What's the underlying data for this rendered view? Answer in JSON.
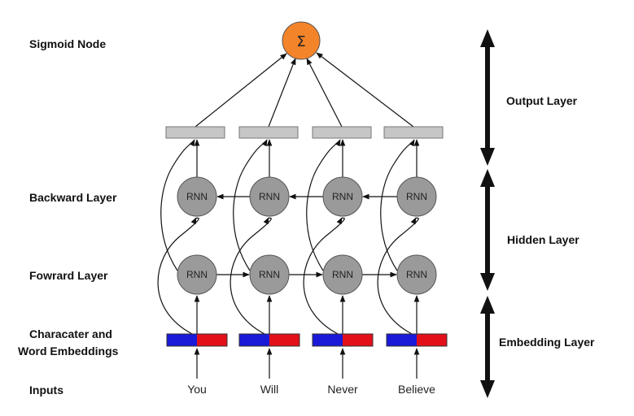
{
  "left_labels": {
    "sigmoid": "Sigmoid Node",
    "backward": "Backward Layer",
    "forward": "Fowrard Layer",
    "embed_line1": "Characater and",
    "embed_line2": "Word Embeddings",
    "inputs": "Inputs"
  },
  "right_labels": {
    "output": "Output Layer",
    "hidden": "Hidden Layer",
    "embedding": "Embedding Layer"
  },
  "sigmoid_symbol": "Σ",
  "rnn_label": "RNN",
  "inputs": [
    "You",
    "Will",
    "Never",
    "Believe"
  ],
  "colors": {
    "sigmoid_fill": "#f4842a",
    "rnn_fill": "#9a9a9a",
    "output_box_fill": "#c6c6c6",
    "embed_left": "#1a1ad8",
    "embed_right": "#e3101a",
    "arrow": "#111111"
  }
}
